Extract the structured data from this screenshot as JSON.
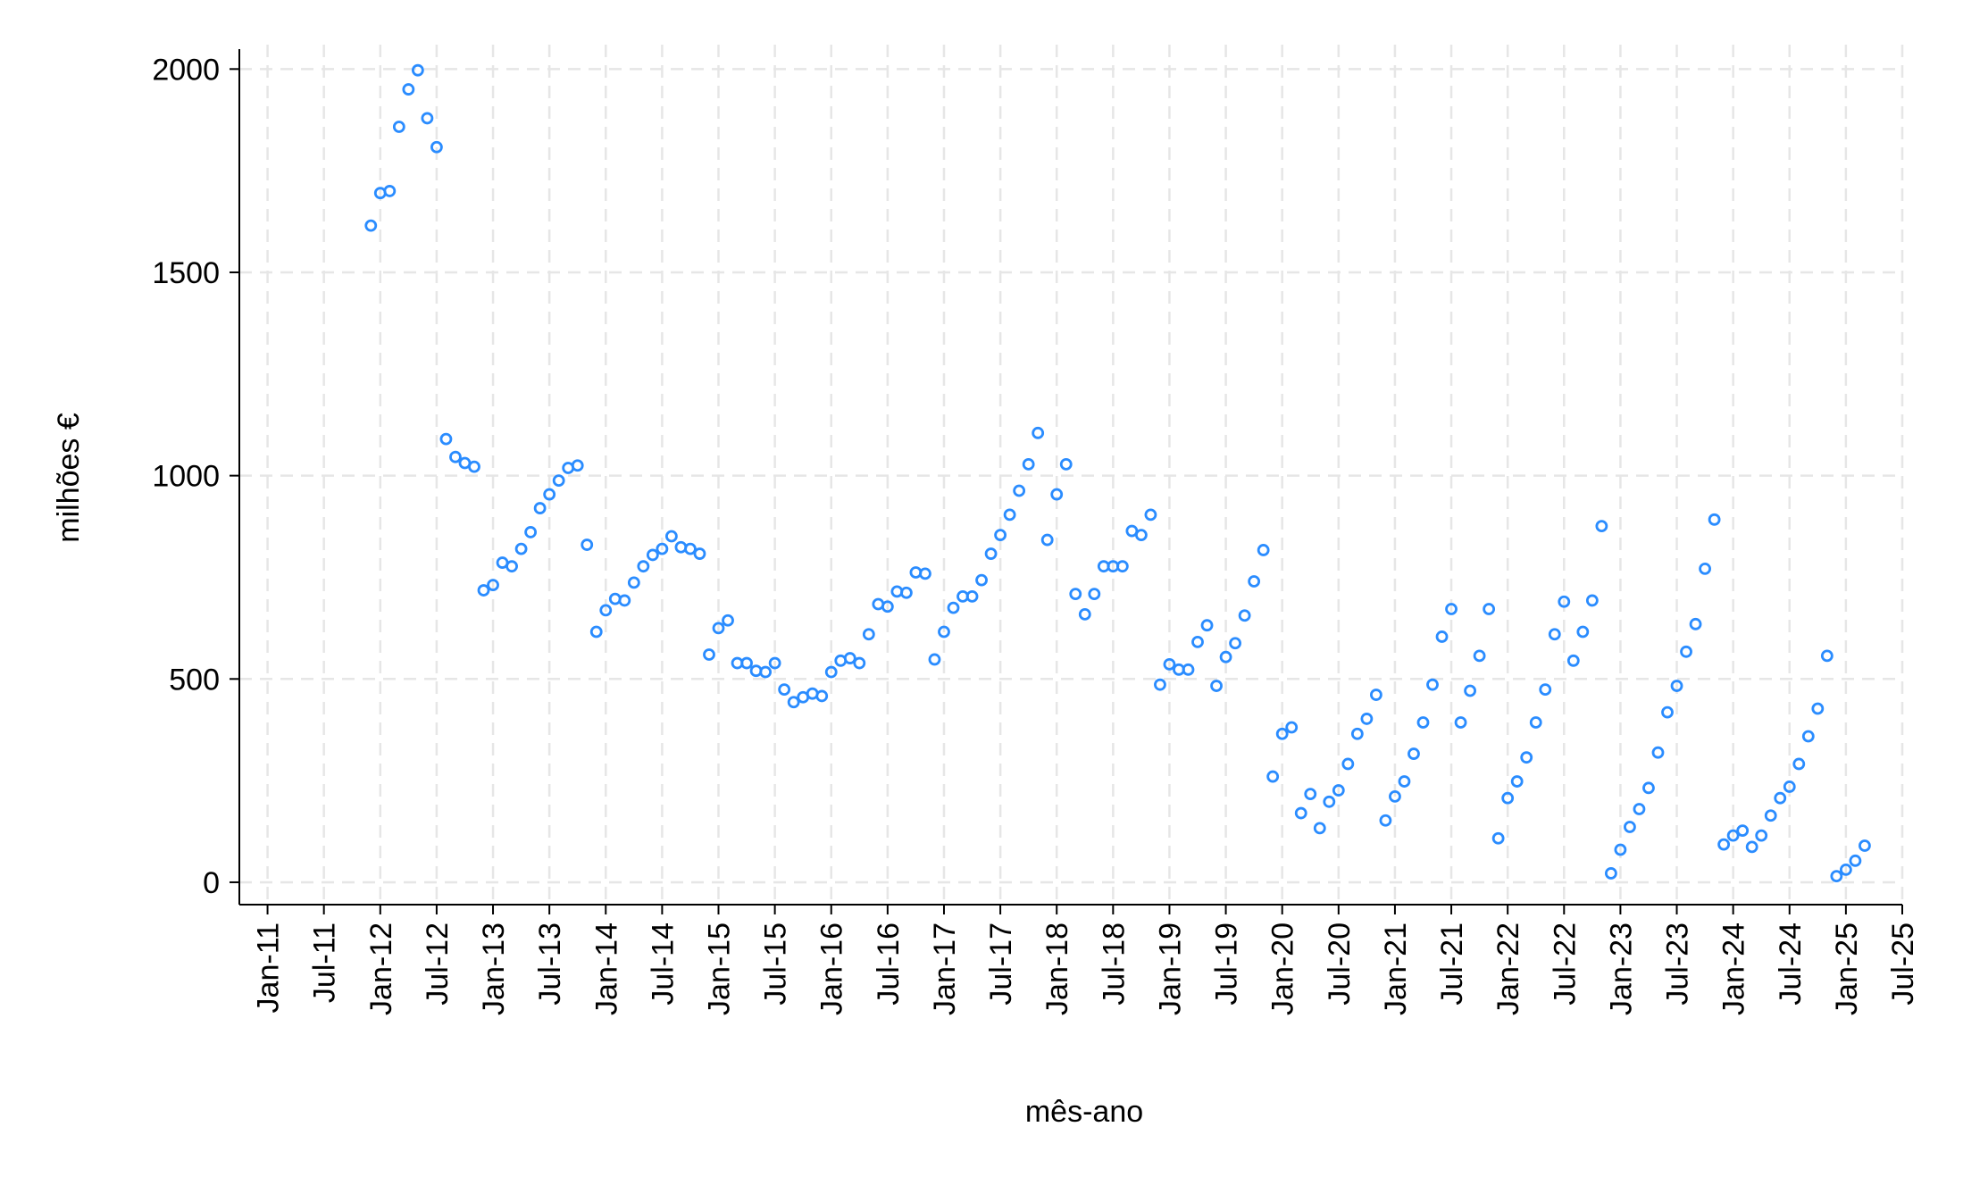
{
  "chart_data": {
    "type": "scatter",
    "x_label": "mês-ano",
    "y_label": "milhões €",
    "x": [
      "2011-12",
      "2012-01",
      "2012-02",
      "2012-03",
      "2012-04",
      "2012-05",
      "2012-06",
      "2012-07",
      "2012-08",
      "2012-09",
      "2012-10",
      "2012-11",
      "2012-12",
      "2013-01",
      "2013-02",
      "2013-03",
      "2013-04",
      "2013-05",
      "2013-06",
      "2013-07",
      "2013-08",
      "2013-09",
      "2013-10",
      "2013-11",
      "2013-12",
      "2014-01",
      "2014-02",
      "2014-03",
      "2014-04",
      "2014-05",
      "2014-06",
      "2014-07",
      "2014-08",
      "2014-09",
      "2014-10",
      "2014-11",
      "2014-12",
      "2015-01",
      "2015-02",
      "2015-03",
      "2015-04",
      "2015-05",
      "2015-06",
      "2015-07",
      "2015-08",
      "2015-09",
      "2015-10",
      "2015-11",
      "2015-12",
      "2016-01",
      "2016-02",
      "2016-03",
      "2016-04",
      "2016-05",
      "2016-06",
      "2016-07",
      "2016-08",
      "2016-09",
      "2016-10",
      "2016-11",
      "2016-12",
      "2017-01",
      "2017-02",
      "2017-03",
      "2017-04",
      "2017-05",
      "2017-06",
      "2017-07",
      "2017-08",
      "2017-09",
      "2017-10",
      "2017-11",
      "2017-12",
      "2018-01",
      "2018-02",
      "2018-03",
      "2018-04",
      "2018-05",
      "2018-06",
      "2018-07",
      "2018-08",
      "2018-09",
      "2018-10",
      "2018-11",
      "2018-12",
      "2019-01",
      "2019-02",
      "2019-03",
      "2019-04",
      "2019-05",
      "2019-06",
      "2019-07",
      "2019-08",
      "2019-09",
      "2019-10",
      "2019-11",
      "2019-12",
      "2020-01",
      "2020-02",
      "2020-03",
      "2020-04",
      "2020-05",
      "2020-06",
      "2020-07",
      "2020-08",
      "2020-09",
      "2020-10",
      "2020-11",
      "2020-12",
      "2021-01",
      "2021-02",
      "2021-03",
      "2021-04",
      "2021-05",
      "2021-06",
      "2021-07",
      "2021-08",
      "2021-09",
      "2021-10",
      "2021-11",
      "2021-12",
      "2022-01",
      "2022-02",
      "2022-03",
      "2022-04",
      "2022-05",
      "2022-06",
      "2022-07",
      "2022-08",
      "2022-09",
      "2022-10",
      "2022-11",
      "2022-12",
      "2023-01",
      "2023-02",
      "2023-03",
      "2023-04",
      "2023-05",
      "2023-06",
      "2023-07",
      "2023-08",
      "2023-09",
      "2023-10",
      "2023-11",
      "2023-12",
      "2024-01",
      "2024-02",
      "2024-03",
      "2024-04",
      "2024-05",
      "2024-06",
      "2024-07",
      "2024-08",
      "2024-09",
      "2024-10",
      "2024-11",
      "2024-12",
      "2025-01",
      "2025-02",
      "2025-03"
    ],
    "series": [
      {
        "color": "#2a8cff",
        "values": [
          1615,
          1695,
          1700,
          1858,
          1950,
          1997,
          1879,
          1808,
          1090,
          1046,
          1031,
          1022,
          718,
          731,
          786,
          777,
          820,
          861,
          920,
          954,
          988,
          1019,
          1025,
          830,
          616,
          669,
          697,
          693,
          737,
          777,
          805,
          820,
          851,
          824,
          820,
          808,
          560,
          625,
          644,
          539,
          539,
          520,
          517,
          539,
          474,
          443,
          455,
          464,
          458,
          517,
          545,
          551,
          539,
          610,
          684,
          678,
          715,
          712,
          762,
          759,
          548,
          616,
          675,
          703,
          703,
          743,
          808,
          854,
          904,
          963,
          1028,
          1105,
          842,
          954,
          1028,
          709,
          659,
          709,
          777,
          777,
          777,
          864,
          854,
          904,
          486,
          536,
          523,
          523,
          591,
          632,
          483,
          554,
          588,
          656,
          740,
          817,
          260,
          365,
          381,
          170,
          217,
          133,
          198,
          226,
          291,
          365,
          402,
          461,
          152,
          211,
          248,
          316,
          393,
          486,
          604,
          672,
          393,
          471,
          557,
          672,
          108,
          207,
          248,
          307,
          393,
          474,
          610,
          690,
          545,
          616,
          693,
          876,
          22,
          80,
          136,
          180,
          232,
          319,
          418,
          483,
          567,
          635,
          771,
          892,
          93,
          115,
          127,
          87,
          115,
          164,
          207,
          235,
          291,
          359,
          427,
          557,
          15,
          31,
          53,
          90
        ]
      }
    ],
    "xlim": [
      "2010-10",
      "2025-07"
    ],
    "xticks": [
      {
        "value": "2011-01",
        "label": "Jan-11"
      },
      {
        "value": "2011-07",
        "label": "Jul-11"
      },
      {
        "value": "2012-01",
        "label": "Jan-12"
      },
      {
        "value": "2012-07",
        "label": "Jul-12"
      },
      {
        "value": "2013-01",
        "label": "Jan-13"
      },
      {
        "value": "2013-07",
        "label": "Jul-13"
      },
      {
        "value": "2014-01",
        "label": "Jan-14"
      },
      {
        "value": "2014-07",
        "label": "Jul-14"
      },
      {
        "value": "2015-01",
        "label": "Jan-15"
      },
      {
        "value": "2015-07",
        "label": "Jul-15"
      },
      {
        "value": "2016-01",
        "label": "Jan-16"
      },
      {
        "value": "2016-07",
        "label": "Jul-16"
      },
      {
        "value": "2017-01",
        "label": "Jan-17"
      },
      {
        "value": "2017-07",
        "label": "Jul-17"
      },
      {
        "value": "2018-01",
        "label": "Jan-18"
      },
      {
        "value": "2018-07",
        "label": "Jul-18"
      },
      {
        "value": "2019-01",
        "label": "Jan-19"
      },
      {
        "value": "2019-07",
        "label": "Jul-19"
      },
      {
        "value": "2020-01",
        "label": "Jan-20"
      },
      {
        "value": "2020-07",
        "label": "Jul-20"
      },
      {
        "value": "2021-01",
        "label": "Jan-21"
      },
      {
        "value": "2021-07",
        "label": "Jul-21"
      },
      {
        "value": "2022-01",
        "label": "Jan-22"
      },
      {
        "value": "2022-07",
        "label": "Jul-22"
      },
      {
        "value": "2023-01",
        "label": "Jan-23"
      },
      {
        "value": "2023-07",
        "label": "Jul-23"
      },
      {
        "value": "2024-01",
        "label": "Jan-24"
      },
      {
        "value": "2024-07",
        "label": "Jul-24"
      },
      {
        "value": "2025-01",
        "label": "Jan-25"
      },
      {
        "value": "2025-07",
        "label": "Jul-25"
      }
    ],
    "ylim": [
      -55,
      2060
    ],
    "yticks": [
      0,
      500,
      1000,
      1500,
      2000
    ],
    "grid": true
  }
}
